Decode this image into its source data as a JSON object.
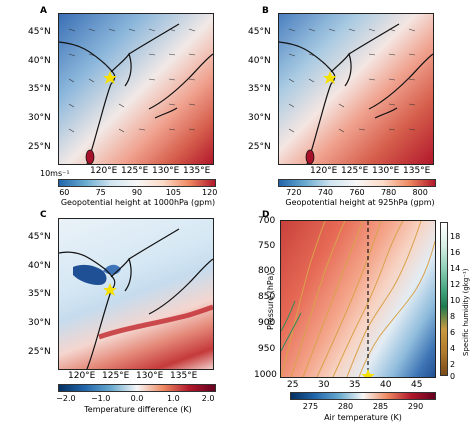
{
  "panels": {
    "A": {
      "label": "A",
      "lat_ticks": [
        "45°N",
        "40°N",
        "35°N",
        "30°N",
        "25°N"
      ],
      "lon_ticks": [
        "120°E",
        "125°E",
        "130°E",
        "135°E"
      ],
      "wind_scale": "10ms⁻¹",
      "colorbar_ticks": [
        "60",
        "75",
        "90",
        "105",
        "120"
      ],
      "colorbar_title": "Geopotential height at 1000hPa (gpm)"
    },
    "B": {
      "label": "B",
      "lat_ticks": [
        "45°N",
        "40°N",
        "35°N",
        "30°N",
        "25°N"
      ],
      "lon_ticks": [
        "120°E",
        "125°E",
        "130°E",
        "135°E"
      ],
      "colorbar_ticks": [
        "720",
        "740",
        "760",
        "780",
        "800"
      ],
      "colorbar_title": "Geopotential height at 925hPa (gpm)"
    },
    "C": {
      "label": "C",
      "lat_ticks": [
        "45°N",
        "40°N",
        "35°N",
        "30°N",
        "25°N"
      ],
      "lon_ticks": [
        "120°E",
        "125°E",
        "130°E",
        "135°E"
      ],
      "colorbar_ticks": [
        "−2.0",
        "−1.0",
        "0.0",
        "1.0",
        "2.0"
      ],
      "colorbar_title": "Temperature difference (K)"
    },
    "D": {
      "label": "D",
      "ylabel": "Pressure (hPa)",
      "y_ticks": [
        "700",
        "750",
        "800",
        "850",
        "900",
        "950",
        "1000"
      ],
      "x_ticks": [
        "25",
        "30",
        "35",
        "40",
        "45"
      ],
      "colorbar_bottom_ticks": [
        "275",
        "280",
        "285",
        "290"
      ],
      "colorbar_bottom_title": "Air temperature (K)",
      "colorbar_right_ticks": [
        "18",
        "16",
        "14",
        "12",
        "10",
        "8",
        "6",
        "4",
        "2",
        "0"
      ],
      "colorbar_right_title": "Specific humidity (gkg⁻¹)"
    }
  },
  "colors": {
    "blue": "#2166ac",
    "red": "#b2182b",
    "white": "#f7f7f7",
    "star": "#f5e000"
  }
}
